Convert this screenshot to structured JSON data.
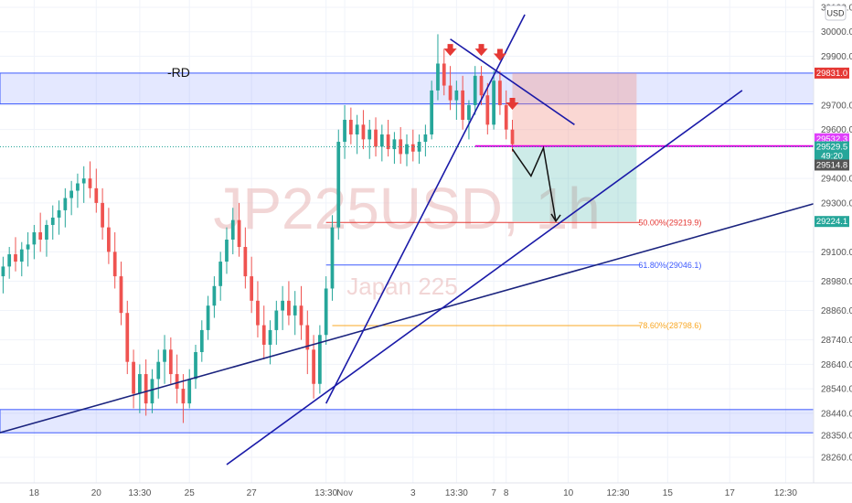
{
  "chart_data": {
    "type": "candlestick",
    "symbol": "JP225USD",
    "interval": "1h",
    "description": "Japan 225",
    "currency": "USD",
    "annotation_text": "-RD",
    "ylim": [
      28200,
      30100
    ],
    "y_ticks": [
      {
        "value": 30100,
        "label": "30100.0"
      },
      {
        "value": 30000,
        "label": "30000.0"
      },
      {
        "value": 29900,
        "label": "29900.0"
      },
      {
        "value": 29700,
        "label": "29700.0"
      },
      {
        "value": 29600,
        "label": "29600.0"
      },
      {
        "value": 29400,
        "label": "29400.0"
      },
      {
        "value": 29300,
        "label": "29300.0"
      },
      {
        "value": 29100,
        "label": "29100.0"
      },
      {
        "value": 28980,
        "label": "28980.0"
      },
      {
        "value": 28860,
        "label": "28860.0"
      },
      {
        "value": 28740,
        "label": "28740.0"
      },
      {
        "value": 28640,
        "label": "28640.0"
      },
      {
        "value": 28540,
        "label": "28540.0"
      },
      {
        "value": 28440,
        "label": "28440.0"
      },
      {
        "value": 28350,
        "label": "28350.0"
      },
      {
        "value": 28260,
        "label": "28260.0"
      }
    ],
    "x_ticks": [
      {
        "bar": 5,
        "label": "18"
      },
      {
        "bar": 15,
        "label": "20"
      },
      {
        "bar": 22,
        "label": "13:30"
      },
      {
        "bar": 30,
        "label": "25"
      },
      {
        "bar": 40,
        "label": "27"
      },
      {
        "bar": 52,
        "label": "13:30"
      },
      {
        "bar": 55,
        "label": "Nov"
      },
      {
        "bar": 66,
        "label": "3"
      },
      {
        "bar": 73,
        "label": "13:30"
      },
      {
        "bar": 79,
        "label": "7"
      },
      {
        "bar": 81,
        "label": "8"
      },
      {
        "bar": 91,
        "label": "10"
      },
      {
        "bar": 99,
        "label": "12:30"
      },
      {
        "bar": 107,
        "label": "15"
      },
      {
        "bar": 117,
        "label": "17"
      },
      {
        "bar": 126,
        "label": "12:30"
      }
    ],
    "total_bars": 131,
    "candles": [
      [
        29000,
        29080,
        28930,
        29040
      ],
      [
        29040,
        29120,
        28990,
        29090
      ],
      [
        29090,
        29160,
        29020,
        29060
      ],
      [
        29060,
        29140,
        29000,
        29110
      ],
      [
        29110,
        29180,
        29040,
        29130
      ],
      [
        29130,
        29210,
        29070,
        29180
      ],
      [
        29180,
        29260,
        29100,
        29150
      ],
      [
        29150,
        29230,
        29080,
        29210
      ],
      [
        29210,
        29290,
        29150,
        29240
      ],
      [
        29240,
        29310,
        29170,
        29270
      ],
      [
        29270,
        29360,
        29200,
        29320
      ],
      [
        29320,
        29390,
        29250,
        29350
      ],
      [
        29350,
        29420,
        29280,
        29380
      ],
      [
        29380,
        29450,
        29300,
        29400
      ],
      [
        29400,
        29470,
        29320,
        29360
      ],
      [
        29360,
        29440,
        29260,
        29300
      ],
      [
        29300,
        29360,
        29150,
        29200
      ],
      [
        29200,
        29280,
        29050,
        29100
      ],
      [
        29100,
        29180,
        28950,
        29000
      ],
      [
        29000,
        29060,
        28800,
        28850
      ],
      [
        28850,
        28900,
        28600,
        28650
      ],
      [
        28650,
        28700,
        28460,
        28520
      ],
      [
        28520,
        28640,
        28440,
        28600
      ],
      [
        28600,
        28660,
        28430,
        28480
      ],
      [
        28480,
        28620,
        28440,
        28580
      ],
      [
        28580,
        28700,
        28500,
        28650
      ],
      [
        28650,
        28760,
        28560,
        28700
      ],
      [
        28700,
        28750,
        28560,
        28600
      ],
      [
        28600,
        28680,
        28480,
        28540
      ],
      [
        28540,
        28600,
        28400,
        28480
      ],
      [
        28480,
        28620,
        28460,
        28580
      ],
      [
        28580,
        28720,
        28540,
        28690
      ],
      [
        28690,
        28820,
        28650,
        28780
      ],
      [
        28780,
        28920,
        28740,
        28880
      ],
      [
        28880,
        29000,
        28830,
        28960
      ],
      [
        28960,
        29100,
        28900,
        29060
      ],
      [
        29060,
        29200,
        29010,
        29150
      ],
      [
        29150,
        29280,
        29090,
        29230
      ],
      [
        29230,
        29300,
        29080,
        29120
      ],
      [
        29120,
        29200,
        28950,
        29000
      ],
      [
        29000,
        29080,
        28850,
        28900
      ],
      [
        28900,
        28980,
        28750,
        28800
      ],
      [
        28800,
        28880,
        28660,
        28720
      ],
      [
        28720,
        28820,
        28640,
        28780
      ],
      [
        28780,
        28900,
        28720,
        28860
      ],
      [
        28860,
        28960,
        28780,
        28900
      ],
      [
        28900,
        28980,
        28800,
        28840
      ],
      [
        28840,
        28940,
        28760,
        28880
      ],
      [
        28880,
        28960,
        28740,
        28800
      ],
      [
        28800,
        28860,
        28600,
        28700
      ],
      [
        28700,
        28760,
        28500,
        28560
      ],
      [
        28560,
        28800,
        28520,
        28760
      ],
      [
        28760,
        29000,
        28720,
        28950
      ],
      [
        28950,
        29250,
        28900,
        29200
      ],
      [
        29200,
        29600,
        29150,
        29550
      ],
      [
        29550,
        29700,
        29480,
        29640
      ],
      [
        29640,
        29690,
        29540,
        29580
      ],
      [
        29580,
        29660,
        29500,
        29620
      ],
      [
        29620,
        29680,
        29520,
        29560
      ],
      [
        29560,
        29640,
        29480,
        29600
      ],
      [
        29600,
        29650,
        29490,
        29530
      ],
      [
        29530,
        29620,
        29470,
        29580
      ],
      [
        29580,
        29640,
        29490,
        29520
      ],
      [
        29520,
        29590,
        29460,
        29560
      ],
      [
        29560,
        29610,
        29460,
        29500
      ],
      [
        29500,
        29580,
        29450,
        29540
      ],
      [
        29540,
        29600,
        29470,
        29510
      ],
      [
        29510,
        29580,
        29460,
        29550
      ],
      [
        29550,
        29620,
        29490,
        29580
      ],
      [
        29580,
        29800,
        29560,
        29760
      ],
      [
        29760,
        29990,
        29720,
        29870
      ],
      [
        29870,
        29930,
        29740,
        29780
      ],
      [
        29780,
        29860,
        29680,
        29720
      ],
      [
        29720,
        29800,
        29640,
        29760
      ],
      [
        29760,
        29820,
        29600,
        29640
      ],
      [
        29640,
        29720,
        29560,
        29700
      ],
      [
        29700,
        29860,
        29660,
        29820
      ],
      [
        29820,
        29860,
        29700,
        29740
      ],
      [
        29740,
        29790,
        29580,
        29620
      ],
      [
        29620,
        29840,
        29600,
        29800
      ],
      [
        29800,
        29840,
        29660,
        29700
      ],
      [
        29700,
        29760,
        29560,
        29600
      ],
      [
        29600,
        29640,
        29510,
        29540
      ]
    ],
    "lines": [
      {
        "name": "rising-trendline-long",
        "from": {
          "bar": -2,
          "price": 28350
        },
        "to": {
          "bar": 131,
          "price": 29300
        },
        "color": "#1a237e"
      },
      {
        "name": "rising-trendline-steep",
        "from": {
          "bar": 52,
          "price": 28480
        },
        "to": {
          "bar": 84,
          "price": 30070
        },
        "color": "#1a1aa8"
      },
      {
        "name": "rising-trendline-mid",
        "from": {
          "bar": 36,
          "price": 28230
        },
        "to": {
          "bar": 119,
          "price": 29760
        },
        "color": "#1a1aa8"
      },
      {
        "name": "descending-trendline",
        "from": {
          "bar": 72,
          "price": 29970
        },
        "to": {
          "bar": 92,
          "price": 29620
        },
        "color": "#1a1aa8"
      }
    ],
    "zones": [
      {
        "name": "resistance-zone",
        "y_top": 29831.0,
        "y_bottom": 29705.0,
        "color": "#3d5afe"
      },
      {
        "name": "support-zone",
        "y_top": 28455.0,
        "y_bottom": 28360.0,
        "color": "#3d5afe"
      }
    ],
    "position": {
      "x0_bar": 82,
      "x1_bar": 102,
      "stop": 29831.0,
      "entry": 29532.3,
      "target": 29224.1
    },
    "pink_level": 29532.3,
    "fib_levels": [
      {
        "label": "50.00%(29219.9)",
        "value": 29219.9,
        "color": "#e53935",
        "x0_bar": 52
      },
      {
        "label": "61.80%(29046.1)",
        "value": 29046.1,
        "color": "#3d5afe",
        "x0_bar": 52
      },
      {
        "label": "78.60%(28798.6)",
        "value": 28798.6,
        "color": "#f9a825",
        "x0_bar": 53
      }
    ],
    "red_arrows_bars": [
      72,
      77,
      80,
      82
    ],
    "path_arrow": [
      {
        "bar": 82,
        "price": 29520
      },
      {
        "bar": 85,
        "price": 29410
      },
      {
        "bar": 87,
        "price": 29525
      },
      {
        "bar": 89,
        "price": 29225
      }
    ],
    "price_tags": [
      {
        "value": 29831.0,
        "label": "29831.0",
        "bg": "#e53935",
        "fg": "#ffffff"
      },
      {
        "value": 29532.3,
        "label": "29532.3",
        "bg": "#e040fb",
        "fg": "#ffffff"
      },
      {
        "value": 29529.5,
        "label": "29529.5",
        "sub": "49:20",
        "bg": "#26a69a",
        "fg": "#ffffff"
      },
      {
        "value": 29514.8,
        "label": "29514.8",
        "bg": "#555555",
        "fg": "#ffffff"
      },
      {
        "value": 29224.1,
        "label": "29224.1",
        "bg": "#26a69a",
        "fg": "#ffffff"
      }
    ],
    "colors": {
      "up": "#26a69a",
      "down": "#ef5350",
      "grid": "#f0f3fa",
      "watermark": "#e8b4b4",
      "pink_line": "#e000e0"
    }
  }
}
